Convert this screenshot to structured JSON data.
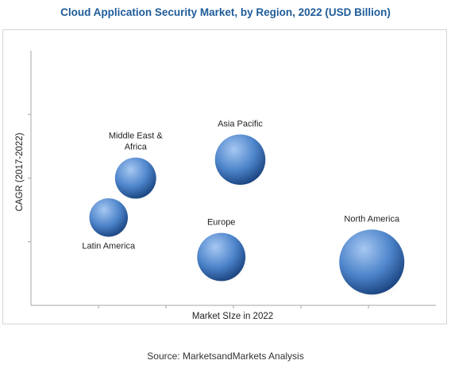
{
  "title": "Cloud Application Security Market, by Region, 2022 (USD Billion)",
  "source": "Source: MarketsandMarkets Analysis",
  "chart_data": {
    "type": "scatter",
    "variant": "bubble",
    "title": "Cloud Application Security Market, by Region, 2022 (USD Billion)",
    "xlabel": "Market SIze in 2022",
    "ylabel": "CAGR (2017-2022)",
    "xlim": [
      0,
      6
    ],
    "ylim": [
      0,
      4
    ],
    "grid": false,
    "legend": "none",
    "points": [
      {
        "label": "North America",
        "x": 5.05,
        "y": 0.68,
        "size": 1.0
      },
      {
        "label": "Asia Pacific",
        "x": 3.1,
        "y": 2.29,
        "size": 0.6
      },
      {
        "label": "Europe",
        "x": 2.82,
        "y": 0.76,
        "size": 0.55
      },
      {
        "label": "Middle East & Africa",
        "x": 1.55,
        "y": 2.0,
        "size": 0.4
      },
      {
        "label": "Latin America",
        "x": 1.15,
        "y": 1.38,
        "size": 0.35
      }
    ],
    "colors": {
      "bubble_light": "#a7c8f2",
      "bubble_mid": "#4e85cb",
      "bubble_dark": "#163f7a",
      "axis": "#a6a6a6",
      "title": "#1f5c99"
    }
  }
}
